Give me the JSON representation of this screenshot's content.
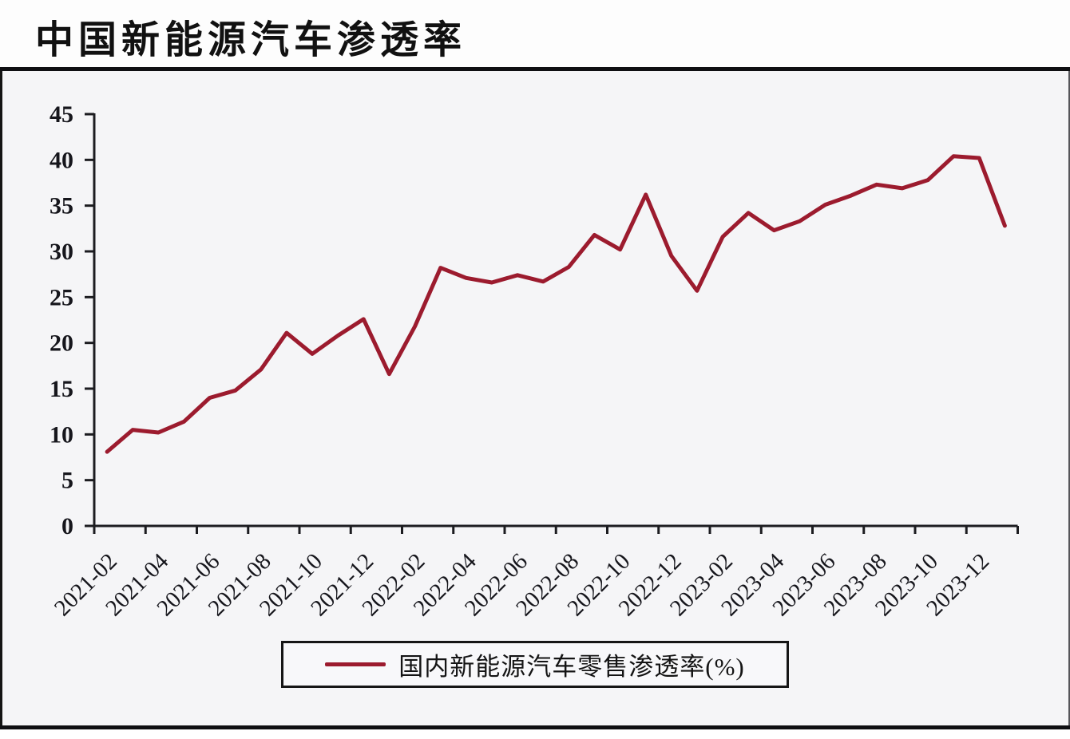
{
  "header": {
    "title": "中国新能源汽车渗透率"
  },
  "legend": {
    "label": "国内新能源汽车零售渗透率(%)"
  },
  "colors": {
    "line": "#9c1b2e",
    "axis": "#1c1c20",
    "panel_background": "#f5f5f7",
    "frame": "#0f0f12",
    "text": "#16161c"
  },
  "chart_data": {
    "type": "line",
    "title": "中国新能源汽车渗透率",
    "x": [
      "2021-02",
      "2021-03",
      "2021-04",
      "2021-05",
      "2021-06",
      "2021-07",
      "2021-08",
      "2021-09",
      "2021-10",
      "2021-11",
      "2021-12",
      "2022-01",
      "2022-02",
      "2022-03",
      "2022-04",
      "2022-05",
      "2022-06",
      "2022-07",
      "2022-08",
      "2022-09",
      "2022-10",
      "2022-11",
      "2022-12",
      "2023-01",
      "2023-02",
      "2023-03",
      "2023-04",
      "2023-05",
      "2023-06",
      "2023-07",
      "2023-08",
      "2023-09",
      "2023-10",
      "2023-11",
      "2023-12",
      "2024-01"
    ],
    "series": [
      {
        "name": "国内新能源汽车零售渗透率(%)",
        "values": [
          8.1,
          10.5,
          10.2,
          11.4,
          14.0,
          14.8,
          17.1,
          21.1,
          18.8,
          20.8,
          22.6,
          16.6,
          21.8,
          28.2,
          27.1,
          26.6,
          27.4,
          26.7,
          28.3,
          31.8,
          30.2,
          36.2,
          29.5,
          25.7,
          31.6,
          34.2,
          32.3,
          33.3,
          35.1,
          36.1,
          37.3,
          36.9,
          37.8,
          40.4,
          40.2,
          32.8
        ]
      }
    ],
    "xtick_labels": [
      "2021-02",
      "2021-04",
      "2021-06",
      "2021-08",
      "2021-10",
      "2021-12",
      "2022-02",
      "2022-04",
      "2022-06",
      "2022-08",
      "2022-10",
      "2022-12",
      "2023-02",
      "2023-04",
      "2023-06",
      "2023-08",
      "2023-10",
      "2023-12"
    ],
    "ytick_labels": [
      "0",
      "5",
      "10",
      "15",
      "20",
      "25",
      "30",
      "35",
      "40",
      "45"
    ],
    "ylim": [
      0,
      45
    ],
    "xlabel": "",
    "ylabel": "",
    "grid": false,
    "legend_position": "bottom",
    "xtick_rotation_deg": 45
  }
}
